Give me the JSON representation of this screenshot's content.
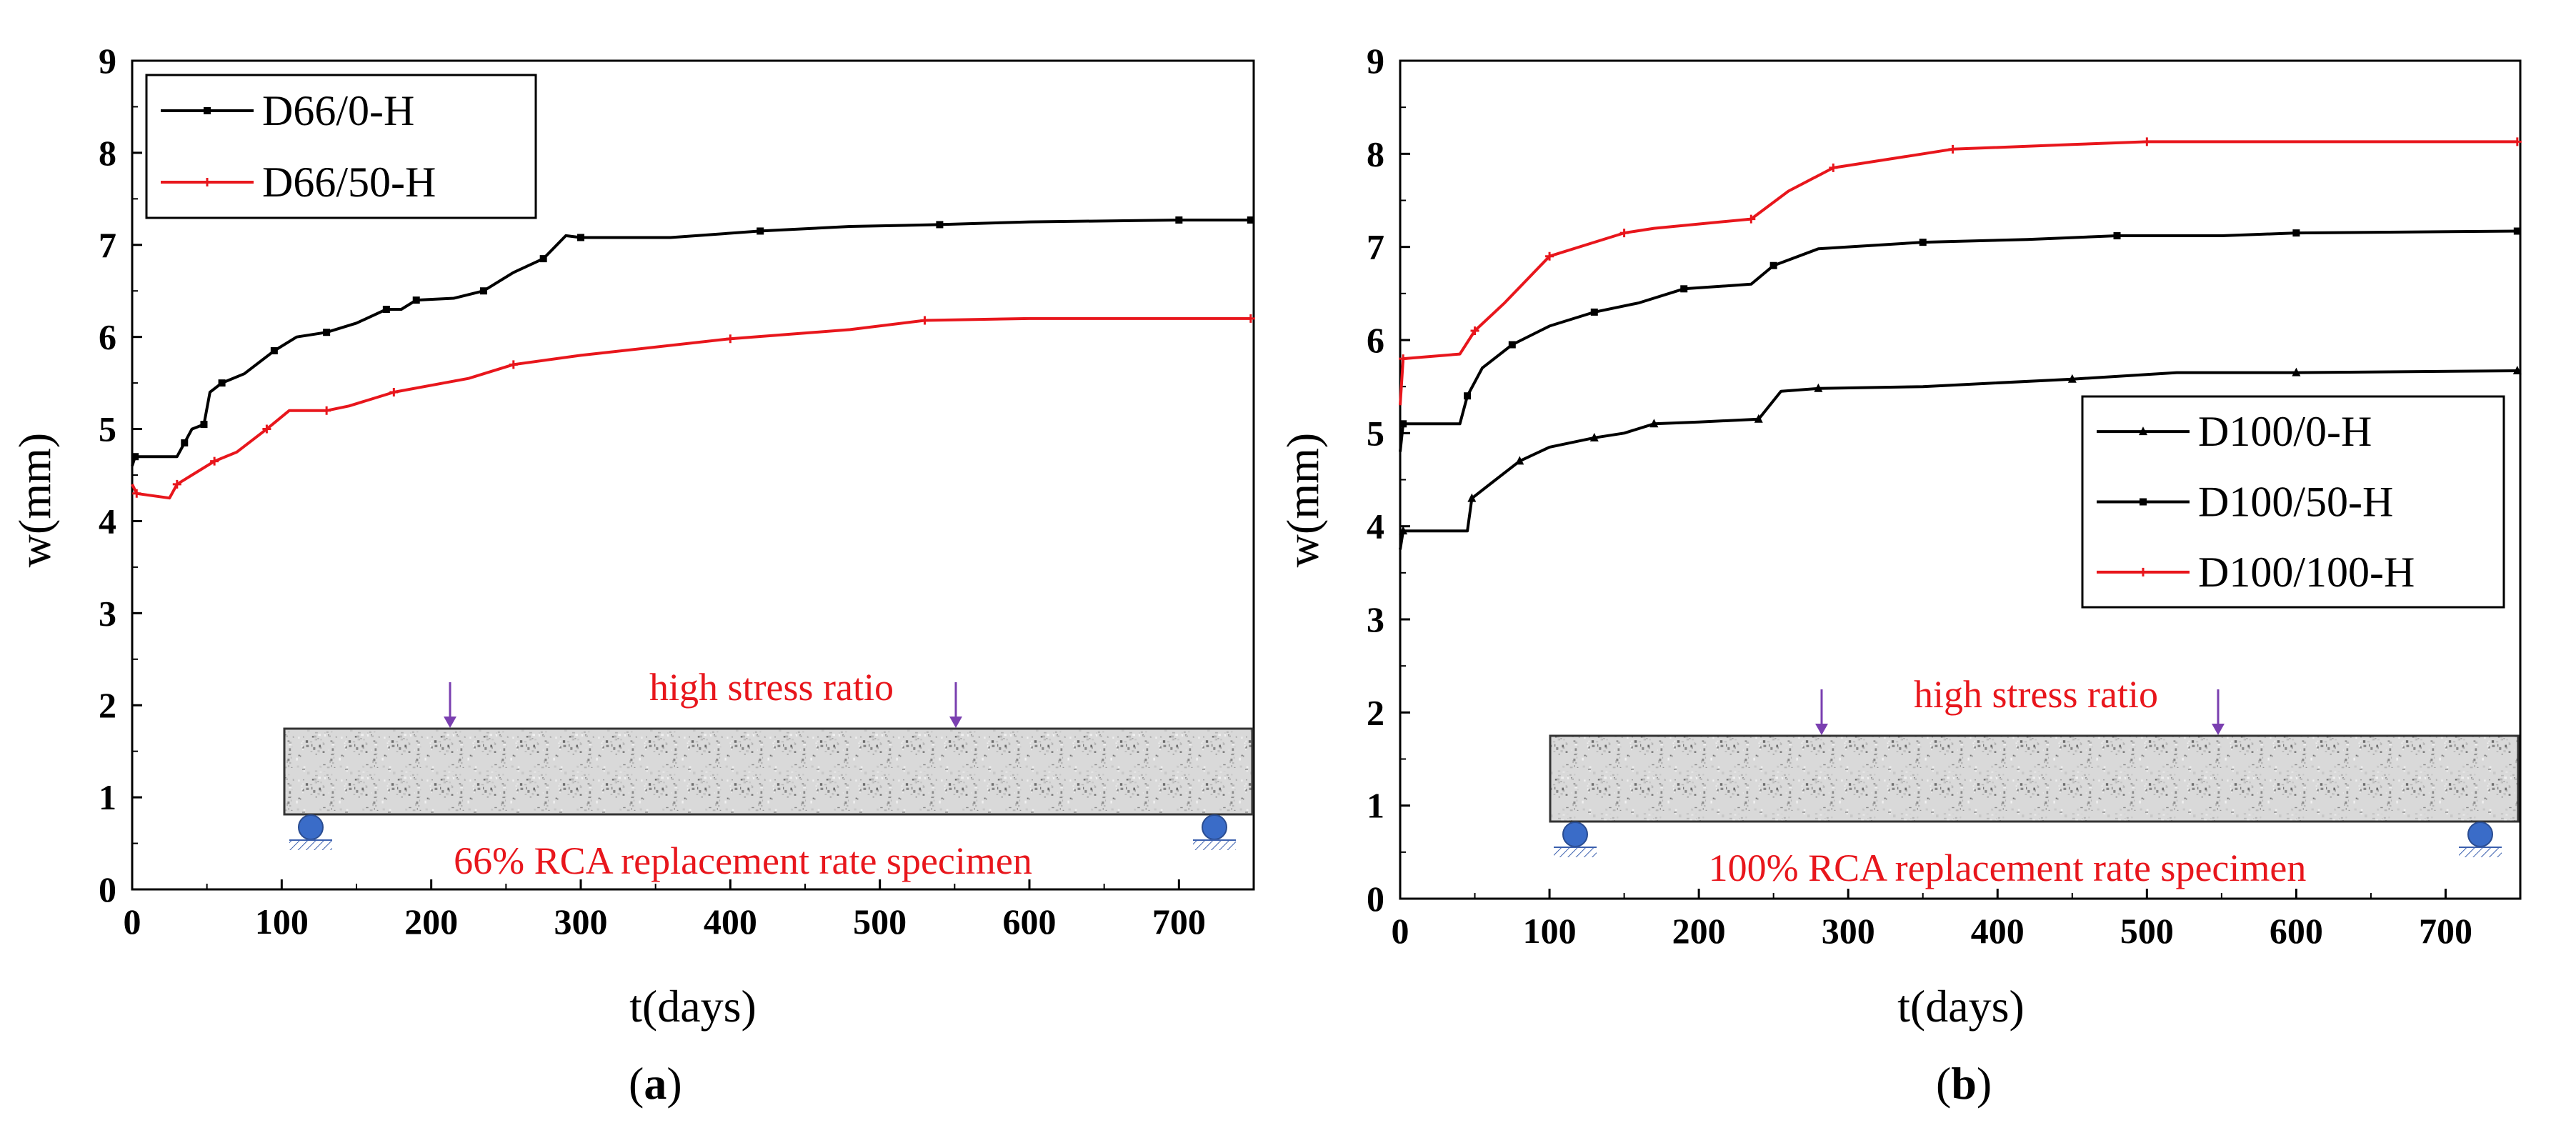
{
  "chart_data": [
    {
      "type": "line",
      "panel_label": "a",
      "xlabel": "t(days)",
      "ylabel": "w(mm)",
      "xlim": [
        0,
        750
      ],
      "ylim": [
        0,
        9
      ],
      "xticks": [
        0,
        100,
        200,
        300,
        400,
        500,
        600,
        700
      ],
      "yticks": [
        0,
        1,
        2,
        3,
        4,
        5,
        6,
        7,
        8,
        9
      ],
      "legend_position": "top-left",
      "series": [
        {
          "name": "D66/0-H",
          "color": "#000000",
          "marker": "square",
          "points": [
            [
              0,
              4.6
            ],
            [
              2,
              4.7
            ],
            [
              30,
              4.7
            ],
            [
              35,
              4.85
            ],
            [
              40,
              5.0
            ],
            [
              48,
              5.05
            ],
            [
              52,
              5.4
            ],
            [
              60,
              5.5
            ],
            [
              75,
              5.6
            ],
            [
              95,
              5.85
            ],
            [
              110,
              6.0
            ],
            [
              130,
              6.05
            ],
            [
              150,
              6.15
            ],
            [
              170,
              6.3
            ],
            [
              180,
              6.3
            ],
            [
              190,
              6.4
            ],
            [
              215,
              6.42
            ],
            [
              235,
              6.5
            ],
            [
              255,
              6.7
            ],
            [
              275,
              6.85
            ],
            [
              290,
              7.1
            ],
            [
              300,
              7.08
            ],
            [
              360,
              7.08
            ],
            [
              420,
              7.15
            ],
            [
              480,
              7.2
            ],
            [
              540,
              7.22
            ],
            [
              600,
              7.25
            ],
            [
              700,
              7.27
            ],
            [
              748,
              7.27
            ]
          ]
        },
        {
          "name": "D66/50-H",
          "color": "#e8161c",
          "marker": "plus",
          "points": [
            [
              0,
              4.4
            ],
            [
              3,
              4.3
            ],
            [
              25,
              4.25
            ],
            [
              30,
              4.4
            ],
            [
              40,
              4.5
            ],
            [
              55,
              4.65
            ],
            [
              70,
              4.75
            ],
            [
              90,
              5.0
            ],
            [
              105,
              5.2
            ],
            [
              130,
              5.2
            ],
            [
              145,
              5.25
            ],
            [
              175,
              5.4
            ],
            [
              225,
              5.55
            ],
            [
              255,
              5.7
            ],
            [
              300,
              5.8
            ],
            [
              400,
              5.98
            ],
            [
              480,
              6.08
            ],
            [
              530,
              6.18
            ],
            [
              600,
              6.2
            ],
            [
              748,
              6.2
            ]
          ]
        }
      ],
      "annotations": {
        "top_text": "high stress ratio",
        "bottom_text": "66% RCA replacement rate specimen"
      }
    },
    {
      "type": "line",
      "panel_label": "b",
      "xlabel": "t(days)",
      "ylabel": "w(mm)",
      "xlim": [
        0,
        750
      ],
      "ylim": [
        0,
        9
      ],
      "xticks": [
        0,
        100,
        200,
        300,
        400,
        500,
        600,
        700
      ],
      "yticks": [
        0,
        1,
        2,
        3,
        4,
        5,
        6,
        7,
        8,
        9
      ],
      "legend_position": "center-right",
      "series": [
        {
          "name": "D100/0-H",
          "color": "#000000",
          "marker": "triangle",
          "points": [
            [
              0,
              3.75
            ],
            [
              2,
              3.95
            ],
            [
              45,
              3.95
            ],
            [
              48,
              4.3
            ],
            [
              60,
              4.45
            ],
            [
              80,
              4.7
            ],
            [
              100,
              4.85
            ],
            [
              130,
              4.95
            ],
            [
              150,
              5.0
            ],
            [
              170,
              5.1
            ],
            [
              200,
              5.12
            ],
            [
              240,
              5.15
            ],
            [
              255,
              5.45
            ],
            [
              280,
              5.48
            ],
            [
              350,
              5.5
            ],
            [
              450,
              5.58
            ],
            [
              520,
              5.65
            ],
            [
              600,
              5.65
            ],
            [
              748,
              5.67
            ]
          ]
        },
        {
          "name": "D100/50-H",
          "color": "#000000",
          "marker": "square",
          "points": [
            [
              0,
              4.8
            ],
            [
              2,
              5.1
            ],
            [
              40,
              5.1
            ],
            [
              45,
              5.4
            ],
            [
              55,
              5.7
            ],
            [
              75,
              5.95
            ],
            [
              100,
              6.15
            ],
            [
              130,
              6.3
            ],
            [
              160,
              6.4
            ],
            [
              190,
              6.55
            ],
            [
              235,
              6.6
            ],
            [
              250,
              6.8
            ],
            [
              280,
              6.98
            ],
            [
              350,
              7.05
            ],
            [
              420,
              7.08
            ],
            [
              480,
              7.12
            ],
            [
              550,
              7.12
            ],
            [
              600,
              7.15
            ],
            [
              748,
              7.17
            ]
          ]
        },
        {
          "name": "D100/100-H",
          "color": "#e8161c",
          "marker": "plus",
          "points": [
            [
              0,
              5.3
            ],
            [
              2,
              5.8
            ],
            [
              40,
              5.85
            ],
            [
              50,
              6.1
            ],
            [
              70,
              6.4
            ],
            [
              100,
              6.9
            ],
            [
              130,
              7.05
            ],
            [
              150,
              7.15
            ],
            [
              170,
              7.2
            ],
            [
              235,
              7.3
            ],
            [
              260,
              7.6
            ],
            [
              290,
              7.85
            ],
            [
              330,
              7.95
            ],
            [
              370,
              8.05
            ],
            [
              450,
              8.1
            ],
            [
              500,
              8.13
            ],
            [
              748,
              8.13
            ]
          ]
        }
      ],
      "annotations": {
        "top_text": "high stress ratio",
        "bottom_text": "100% RCA replacement rate specimen"
      }
    }
  ]
}
